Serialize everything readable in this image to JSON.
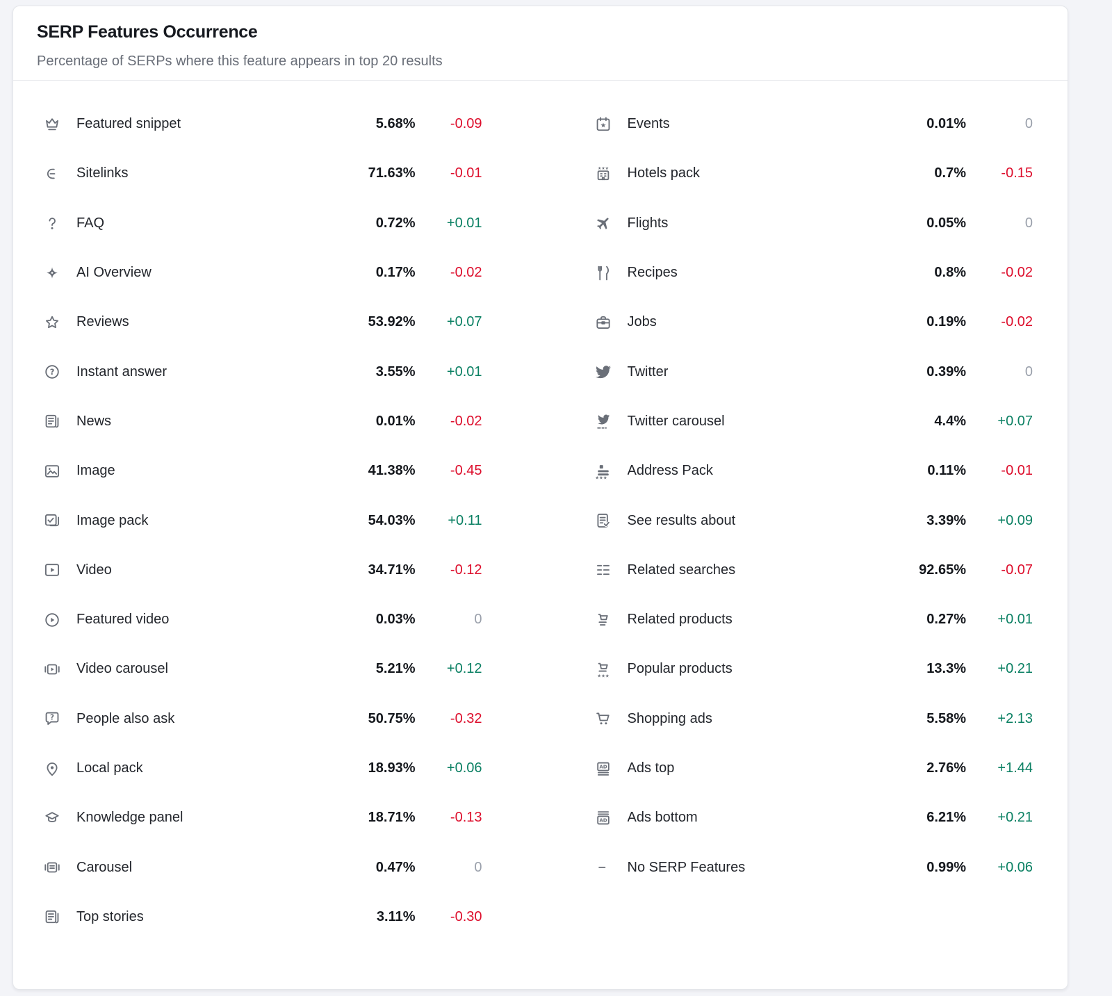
{
  "header": {
    "title": "SERP Features Occurrence",
    "subtitle": "Percentage of SERPs where this feature appears in top 20 results"
  },
  "colors": {
    "positive": "#0b8063",
    "negative": "#dd0e2c",
    "neutral": "#9aa0ab",
    "icon": "#6a6f78"
  },
  "features": {
    "left": [
      {
        "icon": "featured-snippet-icon",
        "label": "Featured snippet",
        "value": "5.68%",
        "change": "-0.09"
      },
      {
        "icon": "sitelinks-icon",
        "label": "Sitelinks",
        "value": "71.63%",
        "change": "-0.01"
      },
      {
        "icon": "faq-icon",
        "label": "FAQ",
        "value": "0.72%",
        "change": "+0.01"
      },
      {
        "icon": "ai-overview-icon",
        "label": "AI Overview",
        "value": "0.17%",
        "change": "-0.02"
      },
      {
        "icon": "reviews-icon",
        "label": "Reviews",
        "value": "53.92%",
        "change": "+0.07"
      },
      {
        "icon": "instant-answer-icon",
        "label": "Instant answer",
        "value": "3.55%",
        "change": "+0.01"
      },
      {
        "icon": "news-icon",
        "label": "News",
        "value": "0.01%",
        "change": "-0.02"
      },
      {
        "icon": "image-icon",
        "label": "Image",
        "value": "41.38%",
        "change": "-0.45"
      },
      {
        "icon": "image-pack-icon",
        "label": "Image pack",
        "value": "54.03%",
        "change": "+0.11"
      },
      {
        "icon": "video-icon",
        "label": "Video",
        "value": "34.71%",
        "change": "-0.12"
      },
      {
        "icon": "featured-video-icon",
        "label": "Featured video",
        "value": "0.03%",
        "change": "0"
      },
      {
        "icon": "video-carousel-icon",
        "label": "Video carousel",
        "value": "5.21%",
        "change": "+0.12"
      },
      {
        "icon": "people-also-ask-icon",
        "label": "People also ask",
        "value": "50.75%",
        "change": "-0.32"
      },
      {
        "icon": "local-pack-icon",
        "label": "Local pack",
        "value": "18.93%",
        "change": "+0.06"
      },
      {
        "icon": "knowledge-panel-icon",
        "label": "Knowledge panel",
        "value": "18.71%",
        "change": "-0.13"
      },
      {
        "icon": "carousel-icon",
        "label": "Carousel",
        "value": "0.47%",
        "change": "0"
      },
      {
        "icon": "top-stories-icon",
        "label": "Top stories",
        "value": "3.11%",
        "change": "-0.30"
      }
    ],
    "right": [
      {
        "icon": "events-icon",
        "label": "Events",
        "value": "0.01%",
        "change": "0"
      },
      {
        "icon": "hotels-pack-icon",
        "label": "Hotels pack",
        "value": "0.7%",
        "change": "-0.15"
      },
      {
        "icon": "flights-icon",
        "label": "Flights",
        "value": "0.05%",
        "change": "0"
      },
      {
        "icon": "recipes-icon",
        "label": "Recipes",
        "value": "0.8%",
        "change": "-0.02"
      },
      {
        "icon": "jobs-icon",
        "label": "Jobs",
        "value": "0.19%",
        "change": "-0.02"
      },
      {
        "icon": "twitter-icon",
        "label": "Twitter",
        "value": "0.39%",
        "change": "0"
      },
      {
        "icon": "twitter-carousel-icon",
        "label": "Twitter carousel",
        "value": "4.4%",
        "change": "+0.07"
      },
      {
        "icon": "address-pack-icon",
        "label": "Address Pack",
        "value": "0.11%",
        "change": "-0.01"
      },
      {
        "icon": "see-results-about-icon",
        "label": "See results about",
        "value": "3.39%",
        "change": "+0.09"
      },
      {
        "icon": "related-searches-icon",
        "label": "Related searches",
        "value": "92.65%",
        "change": "-0.07"
      },
      {
        "icon": "related-products-icon",
        "label": "Related products",
        "value": "0.27%",
        "change": "+0.01"
      },
      {
        "icon": "popular-products-icon",
        "label": "Popular products",
        "value": "13.3%",
        "change": "+0.21"
      },
      {
        "icon": "shopping-ads-icon",
        "label": "Shopping ads",
        "value": "5.58%",
        "change": "+2.13"
      },
      {
        "icon": "ads-top-icon",
        "label": "Ads top",
        "value": "2.76%",
        "change": "+1.44"
      },
      {
        "icon": "ads-bottom-icon",
        "label": "Ads bottom",
        "value": "6.21%",
        "change": "+0.21"
      },
      {
        "icon": "no-serp-features-icon",
        "label": "No SERP Features",
        "value": "0.99%",
        "change": "+0.06"
      }
    ]
  }
}
